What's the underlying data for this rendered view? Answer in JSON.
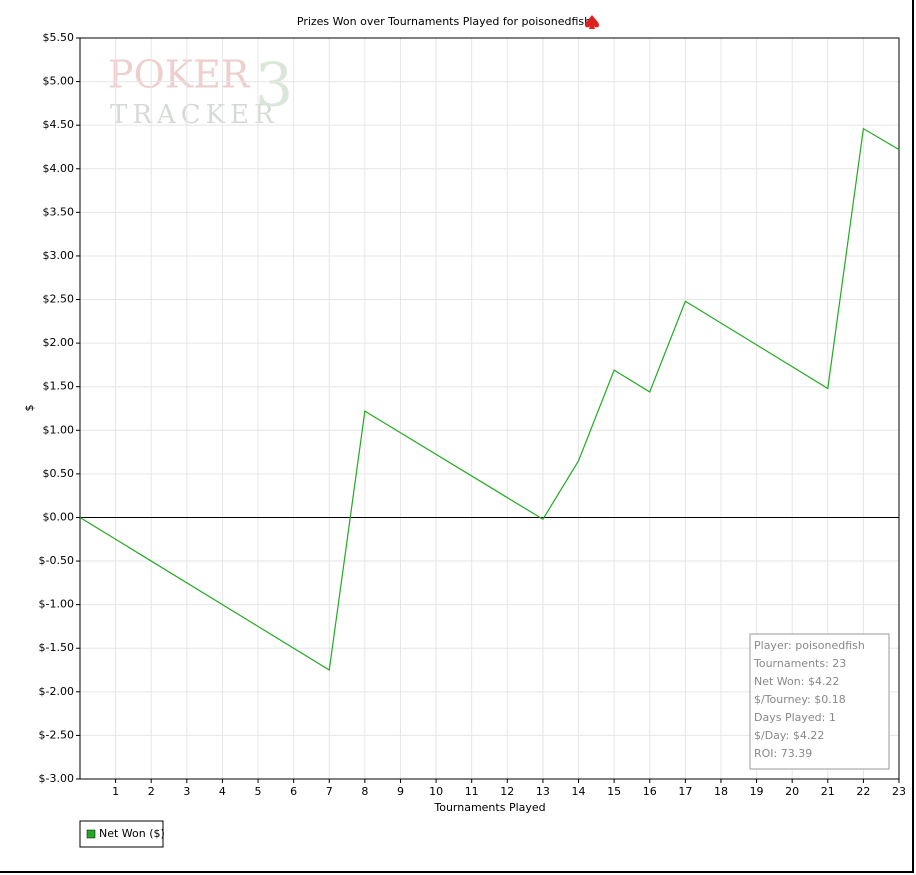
{
  "chart_data": {
    "type": "line",
    "title": "Prizes Won over Tournaments Played for poisonedfish",
    "xlabel": "Tournaments Played",
    "ylabel": "$",
    "watermark": [
      "POKER",
      "TRACKER",
      "3"
    ],
    "x": [
      0,
      7,
      8,
      13,
      14,
      15,
      16,
      17,
      21,
      22,
      23
    ],
    "series": [
      {
        "name": "Net Won ($)",
        "color": "#22aa22",
        "values": [
          0,
          -1.75,
          1.22,
          -0.02,
          0.65,
          1.69,
          1.44,
          2.48,
          1.48,
          4.46,
          4.22
        ]
      }
    ],
    "xlim": [
      0,
      23
    ],
    "xticks": [
      1,
      2,
      3,
      4,
      5,
      6,
      7,
      8,
      9,
      10,
      11,
      12,
      13,
      14,
      15,
      16,
      17,
      18,
      19,
      20,
      21,
      22,
      23
    ],
    "ylim": [
      -3,
      5.5
    ],
    "yticks": [
      {
        "value": -3,
        "label": "$-3.00"
      },
      {
        "value": -2.5,
        "label": "$-2.50"
      },
      {
        "value": -2,
        "label": "$-2.00"
      },
      {
        "value": -1.5,
        "label": "$-1.50"
      },
      {
        "value": -1,
        "label": "$-1.00"
      },
      {
        "value": -0.5,
        "label": "$-0.50"
      },
      {
        "value": 0,
        "label": "$0.00"
      },
      {
        "value": 0.5,
        "label": "$0.50"
      },
      {
        "value": 1,
        "label": "$1.00"
      },
      {
        "value": 1.5,
        "label": "$1.50"
      },
      {
        "value": 2,
        "label": "$2.00"
      },
      {
        "value": 2.5,
        "label": "$2.50"
      },
      {
        "value": 3,
        "label": "$3.00"
      },
      {
        "value": 3.5,
        "label": "$3.50"
      },
      {
        "value": 4,
        "label": "$4.00"
      },
      {
        "value": 4.5,
        "label": "$4.50"
      },
      {
        "value": 5,
        "label": "$5.00"
      },
      {
        "value": 5.5,
        "label": "$5.50"
      }
    ],
    "grid": true,
    "legend": "bottom-left",
    "info_box": [
      "Player: poisonedfish",
      "Tournaments: 23",
      "Net Won: $4.22",
      "$/Tourney: $0.18",
      "Days Played: 1",
      "$/Day: $4.22",
      "ROI: 73.39"
    ]
  }
}
